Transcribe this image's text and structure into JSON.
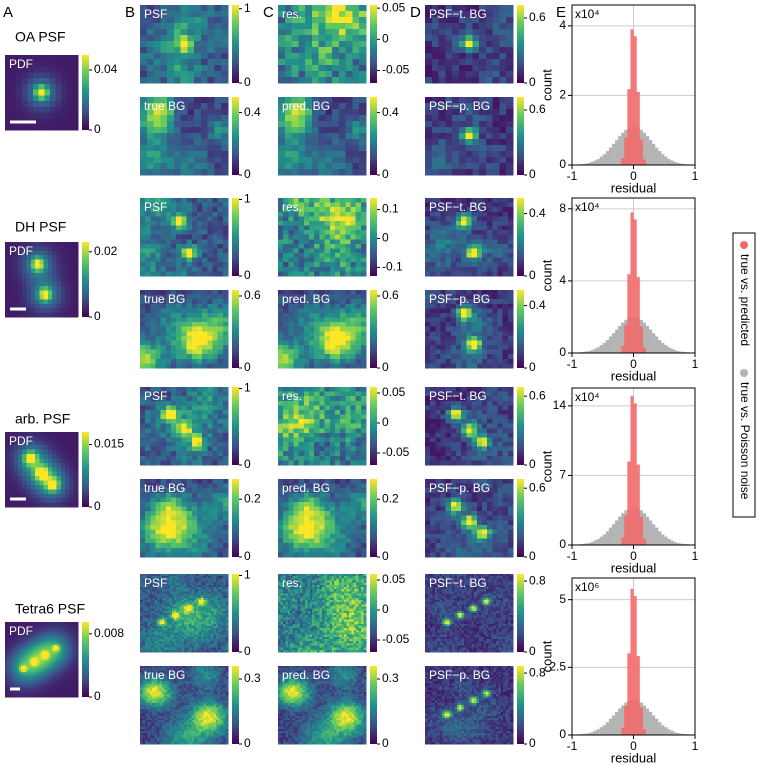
{
  "panel_labels": [
    "A",
    "B",
    "C",
    "D",
    "E"
  ],
  "rows": [
    {
      "psf_name": "OA PSF",
      "images": [
        {
          "label": "PDF",
          "clim": [
            0,
            0.05
          ],
          "cticks": [
            0,
            0.04
          ]
        },
        {
          "label": "PSF",
          "clim": [
            0,
            1.05
          ],
          "cticks": [
            0,
            1
          ]
        },
        {
          "label": "true BG",
          "clim": [
            0,
            0.5
          ],
          "cticks": [
            0,
            0.4
          ]
        },
        {
          "label": "res.",
          "clim": [
            -0.07,
            0.055
          ],
          "cticks": [
            -0.05,
            0,
            0.05
          ]
        },
        {
          "label": "pred. BG",
          "clim": [
            0,
            0.5
          ],
          "cticks": [
            0,
            0.4
          ]
        },
        {
          "label": "PSF−t. BG",
          "clim": [
            0,
            0.72
          ],
          "cticks": [
            0,
            0.6
          ]
        },
        {
          "label": "PSF−p. BG",
          "clim": [
            0,
            0.72
          ],
          "cticks": [
            0,
            0.6
          ]
        }
      ]
    },
    {
      "psf_name": "DH PSF",
      "images": [
        {
          "label": "PDF",
          "clim": [
            0,
            0.023
          ],
          "cticks": [
            0,
            0.02
          ]
        },
        {
          "label": "PSF",
          "clim": [
            0,
            1.02
          ],
          "cticks": [
            0,
            1
          ]
        },
        {
          "label": "true BG",
          "clim": [
            0,
            0.65
          ],
          "cticks": [
            0,
            0.6
          ]
        },
        {
          "label": "res.",
          "clim": [
            -0.13,
            0.14
          ],
          "cticks": [
            -0.1,
            0,
            0.1
          ]
        },
        {
          "label": "pred. BG",
          "clim": [
            0,
            0.65
          ],
          "cticks": [
            0,
            0.6
          ]
        },
        {
          "label": "PSF−t. BG",
          "clim": [
            0,
            0.5
          ],
          "cticks": [
            0,
            0.4
          ]
        },
        {
          "label": "PSF−p. BG",
          "clim": [
            0,
            0.5
          ],
          "cticks": [
            0,
            0.4
          ]
        }
      ]
    },
    {
      "psf_name": "arb. PSF",
      "images": [
        {
          "label": "PDF",
          "clim": [
            0,
            0.018
          ],
          "cticks": [
            0,
            0.015
          ]
        },
        {
          "label": "PSF",
          "clim": [
            0,
            1.02
          ],
          "cticks": [
            0,
            1
          ]
        },
        {
          "label": "true BG",
          "clim": [
            0,
            0.27
          ],
          "cticks": [
            0,
            0.2
          ]
        },
        {
          "label": "res.",
          "clim": [
            -0.07,
            0.06
          ],
          "cticks": [
            -0.05,
            0,
            0.05
          ]
        },
        {
          "label": "pred. BG",
          "clim": [
            0,
            0.27
          ],
          "cticks": [
            0,
            0.2
          ]
        },
        {
          "label": "PSF−t. BG",
          "clim": [
            0,
            0.68
          ],
          "cticks": [
            0,
            0.6
          ]
        },
        {
          "label": "PSF−p. BG",
          "clim": [
            0,
            0.68
          ],
          "cticks": [
            0,
            0.6
          ]
        }
      ]
    },
    {
      "psf_name": "Tetra6 PSF",
      "images": [
        {
          "label": "PDF",
          "clim": [
            0,
            0.0095
          ],
          "cticks": [
            0,
            0.008
          ]
        },
        {
          "label": "PSF",
          "clim": [
            0,
            1.02
          ],
          "cticks": [
            0,
            1
          ]
        },
        {
          "label": "true BG",
          "clim": [
            0,
            0.36
          ],
          "cticks": [
            0,
            0.3
          ]
        },
        {
          "label": "res.",
          "clim": [
            -0.07,
            0.06
          ],
          "cticks": [
            -0.05,
            0,
            0.05
          ]
        },
        {
          "label": "pred. BG",
          "clim": [
            0,
            0.36
          ],
          "cticks": [
            0,
            0.3
          ]
        },
        {
          "label": "PSF−t. BG",
          "clim": [
            0,
            0.88
          ],
          "cticks": [
            0,
            0.8
          ]
        },
        {
          "label": "PSF−p. BG",
          "clim": [
            0,
            0.88
          ],
          "cticks": [
            0,
            0.8
          ]
        }
      ]
    }
  ],
  "chart_data": [
    {
      "type": "histogram",
      "x_label": "residual",
      "y_label": "count",
      "y_scale_label": "x10⁴",
      "grid": true,
      "bins": [
        -1,
        -0.95,
        -0.9,
        -0.85,
        -0.8,
        -0.75,
        -0.7,
        -0.65,
        -0.6,
        -0.55,
        -0.5,
        -0.45,
        -0.4,
        -0.35,
        -0.3,
        -0.25,
        -0.2,
        -0.15,
        -0.1,
        -0.05,
        0,
        0.05,
        0.1,
        0.15,
        0.2,
        0.25,
        0.3,
        0.35,
        0.4,
        0.45,
        0.5,
        0.55,
        0.6,
        0.65,
        0.7,
        0.75,
        0.8,
        0.85,
        0.9,
        0.95,
        1
      ],
      "xlim": [
        -1,
        1
      ],
      "xticks": [
        -1,
        0,
        1
      ],
      "ylim": [
        0,
        4.6
      ],
      "yticks": [
        0,
        2,
        4
      ],
      "series": [
        {
          "name": "true vs. Poisson noise",
          "color": "#b4b4b4",
          "values": [
            0.01,
            0.01,
            0.02,
            0.03,
            0.04,
            0.06,
            0.09,
            0.13,
            0.17,
            0.24,
            0.31,
            0.4,
            0.5,
            0.61,
            0.72,
            0.83,
            0.93,
            1.01,
            1.07,
            1.1,
            1.1,
            1.07,
            1.01,
            0.93,
            0.83,
            0.72,
            0.61,
            0.5,
            0.4,
            0.31,
            0.24,
            0.17,
            0.13,
            0.09,
            0.06,
            0.04,
            0.03,
            0.02,
            0.01,
            0.01
          ]
        },
        {
          "name": "true vs. predicted",
          "color": "#f26b6b",
          "values": [
            0,
            0,
            0,
            0,
            0,
            0,
            0,
            0,
            0,
            0,
            0,
            0,
            0,
            0,
            0,
            0,
            0.2,
            0.78,
            2.18,
            3.9,
            3.7,
            2.1,
            0.74,
            0.16,
            0,
            0,
            0,
            0,
            0,
            0,
            0,
            0,
            0,
            0,
            0,
            0,
            0,
            0,
            0,
            0
          ]
        }
      ]
    },
    {
      "type": "histogram",
      "x_label": "residual",
      "y_label": "count",
      "y_scale_label": "x10⁴",
      "grid": true,
      "bins": [
        -1,
        -0.95,
        -0.9,
        -0.85,
        -0.8,
        -0.75,
        -0.7,
        -0.65,
        -0.6,
        -0.55,
        -0.5,
        -0.45,
        -0.4,
        -0.35,
        -0.3,
        -0.25,
        -0.2,
        -0.15,
        -0.1,
        -0.05,
        0,
        0.05,
        0.1,
        0.15,
        0.2,
        0.25,
        0.3,
        0.35,
        0.4,
        0.45,
        0.5,
        0.55,
        0.6,
        0.65,
        0.7,
        0.75,
        0.8,
        0.85,
        0.9,
        0.95,
        1
      ],
      "xlim": [
        -1,
        1
      ],
      "xticks": [
        -1,
        0,
        1
      ],
      "ylim": [
        0,
        8.6
      ],
      "yticks": [
        0,
        4,
        8
      ],
      "series": [
        {
          "name": "true vs. Poisson noise",
          "color": "#b4b4b4",
          "values": [
            0.02,
            0.02,
            0.04,
            0.06,
            0.08,
            0.1,
            0.16,
            0.24,
            0.32,
            0.44,
            0.56,
            0.72,
            0.92,
            1.1,
            1.3,
            1.5,
            1.68,
            1.84,
            1.94,
            2.0,
            2.0,
            1.94,
            1.84,
            1.68,
            1.5,
            1.3,
            1.1,
            0.92,
            0.72,
            0.56,
            0.44,
            0.32,
            0.24,
            0.16,
            0.1,
            0.08,
            0.06,
            0.04,
            0.02,
            0.02
          ]
        },
        {
          "name": "true vs. predicted",
          "color": "#f26b6b",
          "values": [
            0,
            0,
            0,
            0,
            0,
            0,
            0,
            0,
            0,
            0,
            0,
            0,
            0,
            0,
            0,
            0,
            0.39,
            1.56,
            4.37,
            7.8,
            7.41,
            4.21,
            1.48,
            0.31,
            0,
            0,
            0,
            0,
            0,
            0,
            0,
            0,
            0,
            0,
            0,
            0,
            0,
            0,
            0,
            0
          ]
        }
      ]
    },
    {
      "type": "histogram",
      "x_label": "residual",
      "y_label": "count",
      "y_scale_label": "x10⁴",
      "grid": true,
      "bins": [
        -1,
        -0.95,
        -0.9,
        -0.85,
        -0.8,
        -0.75,
        -0.7,
        -0.65,
        -0.6,
        -0.55,
        -0.5,
        -0.45,
        -0.4,
        -0.35,
        -0.3,
        -0.25,
        -0.2,
        -0.15,
        -0.1,
        -0.05,
        0,
        0.05,
        0.1,
        0.15,
        0.2,
        0.25,
        0.3,
        0.35,
        0.4,
        0.45,
        0.5,
        0.55,
        0.6,
        0.65,
        0.7,
        0.75,
        0.8,
        0.85,
        0.9,
        0.95,
        1
      ],
      "xlim": [
        -1,
        1
      ],
      "xticks": [
        -1,
        0,
        1
      ],
      "ylim": [
        0,
        15.8
      ],
      "yticks": [
        0,
        7,
        14
      ],
      "series": [
        {
          "name": "true vs. Poisson noise",
          "color": "#b4b4b4",
          "values": [
            0.04,
            0.04,
            0.08,
            0.11,
            0.15,
            0.19,
            0.3,
            0.46,
            0.61,
            0.84,
            1.06,
            1.37,
            1.75,
            2.09,
            2.47,
            2.85,
            3.19,
            3.5,
            3.69,
            3.8,
            3.8,
            3.69,
            3.5,
            3.19,
            2.85,
            2.47,
            2.09,
            1.75,
            1.37,
            1.06,
            0.84,
            0.61,
            0.46,
            0.3,
            0.19,
            0.15,
            0.11,
            0.08,
            0.04,
            0.04
          ]
        },
        {
          "name": "true vs. predicted",
          "color": "#f26b6b",
          "values": [
            0,
            0,
            0,
            0,
            0,
            0,
            0,
            0,
            0,
            0,
            0,
            0,
            0,
            0,
            0,
            0,
            0.75,
            3,
            8.4,
            15,
            14.25,
            8.1,
            2.85,
            0.6,
            0,
            0,
            0,
            0,
            0,
            0,
            0,
            0,
            0,
            0,
            0,
            0,
            0,
            0,
            0,
            0
          ]
        }
      ]
    },
    {
      "type": "histogram",
      "x_label": "residual",
      "y_label": "count",
      "y_scale_label": "x10⁶",
      "grid": true,
      "bins": [
        -1,
        -0.95,
        -0.9,
        -0.85,
        -0.8,
        -0.75,
        -0.7,
        -0.65,
        -0.6,
        -0.55,
        -0.5,
        -0.45,
        -0.4,
        -0.35,
        -0.3,
        -0.25,
        -0.2,
        -0.15,
        -0.1,
        -0.05,
        0,
        0.05,
        0.1,
        0.15,
        0.2,
        0.25,
        0.3,
        0.35,
        0.4,
        0.45,
        0.5,
        0.55,
        0.6,
        0.65,
        0.7,
        0.75,
        0.8,
        0.85,
        0.9,
        0.95,
        1
      ],
      "xlim": [
        -1,
        1
      ],
      "xticks": [
        -1,
        0,
        1
      ],
      "ylim": [
        0,
        5.8
      ],
      "yticks": [
        0,
        2.5,
        5
      ],
      "series": [
        {
          "name": "true vs. Poisson noise",
          "color": "#b4b4b4",
          "values": [
            0.01,
            0.01,
            0.03,
            0.04,
            0.05,
            0.07,
            0.1,
            0.16,
            0.21,
            0.29,
            0.36,
            0.47,
            0.6,
            0.72,
            0.85,
            0.98,
            1.09,
            1.2,
            1.26,
            1.3,
            1.3,
            1.26,
            1.2,
            1.09,
            0.98,
            0.85,
            0.72,
            0.6,
            0.47,
            0.36,
            0.29,
            0.21,
            0.16,
            0.1,
            0.07,
            0.05,
            0.04,
            0.03,
            0.01,
            0.01
          ]
        },
        {
          "name": "true vs. predicted",
          "color": "#f26b6b",
          "values": [
            0,
            0,
            0,
            0,
            0,
            0,
            0,
            0,
            0,
            0,
            0,
            0,
            0,
            0,
            0,
            0,
            0.27,
            1.08,
            3.02,
            5.4,
            5.13,
            2.92,
            1.03,
            0.22,
            0,
            0,
            0,
            0,
            0,
            0,
            0,
            0,
            0,
            0,
            0,
            0,
            0,
            0,
            0,
            0
          ]
        }
      ]
    }
  ]
}
